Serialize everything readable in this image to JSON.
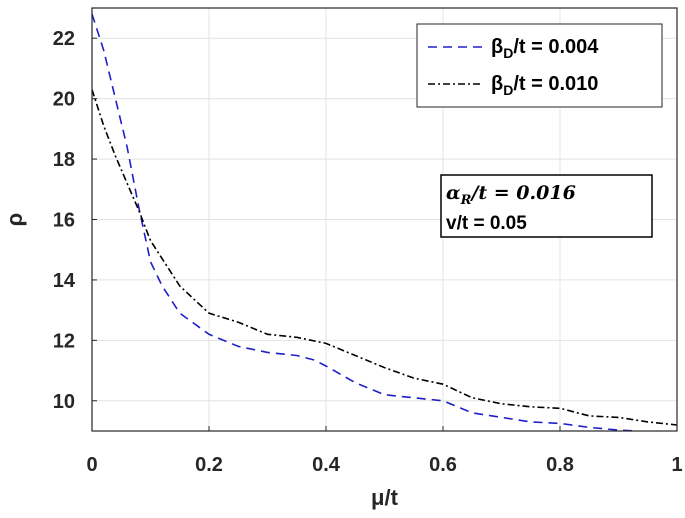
{
  "chart_data": {
    "type": "line",
    "xlabel": "μ/t",
    "ylabel": "ρ",
    "xlim": [
      0,
      1
    ],
    "ylim": [
      9,
      23
    ],
    "xticks": [
      0,
      0.2,
      0.4,
      0.6,
      0.8,
      1
    ],
    "xtick_labels": [
      "0",
      "0.2",
      "0.4",
      "0.6",
      "0.8",
      "1"
    ],
    "yticks": [
      10,
      12,
      14,
      16,
      18,
      20,
      22
    ],
    "ytick_labels": [
      "10",
      "12",
      "14",
      "16",
      "18",
      "20",
      "22"
    ],
    "grid": true,
    "legend_position": "top-right",
    "series": [
      {
        "name": "βD/t = 0.004",
        "legend_parts": [
          "β",
          "D",
          "/t = 0.004"
        ],
        "color": "#1f1fcc",
        "style": "dashed",
        "x": [
          0,
          0.02,
          0.04,
          0.06,
          0.08,
          0.1,
          0.12,
          0.15,
          0.2,
          0.25,
          0.3,
          0.35,
          0.38,
          0.4,
          0.45,
          0.5,
          0.55,
          0.6,
          0.65,
          0.7,
          0.75,
          0.8,
          0.85,
          0.9,
          0.93
        ],
        "values": [
          22.8,
          21.6,
          20.0,
          18.4,
          16.4,
          14.6,
          13.8,
          12.9,
          12.2,
          11.8,
          11.6,
          11.5,
          11.35,
          11.15,
          10.6,
          10.2,
          10.1,
          10.0,
          9.6,
          9.45,
          9.3,
          9.25,
          9.12,
          9.03,
          9.0
        ]
      },
      {
        "name": "βD/t = 0.010",
        "legend_parts": [
          "β",
          "D",
          "/t = 0.010"
        ],
        "color": "#000000",
        "style": "dashdot",
        "x": [
          0,
          0.02,
          0.04,
          0.06,
          0.08,
          0.1,
          0.12,
          0.15,
          0.2,
          0.25,
          0.3,
          0.35,
          0.4,
          0.45,
          0.5,
          0.55,
          0.6,
          0.65,
          0.7,
          0.75,
          0.8,
          0.85,
          0.9,
          0.95,
          1.0
        ],
        "values": [
          20.3,
          19.1,
          18.1,
          17.2,
          16.3,
          15.3,
          14.7,
          13.8,
          12.9,
          12.6,
          12.2,
          12.1,
          11.9,
          11.5,
          11.1,
          10.75,
          10.55,
          10.1,
          9.9,
          9.8,
          9.75,
          9.5,
          9.45,
          9.3,
          9.2
        ]
      }
    ],
    "annotation": {
      "line1_parts": [
        "α",
        "R",
        "/t = 0.016"
      ],
      "line2": "v/t = 0.05"
    }
  }
}
